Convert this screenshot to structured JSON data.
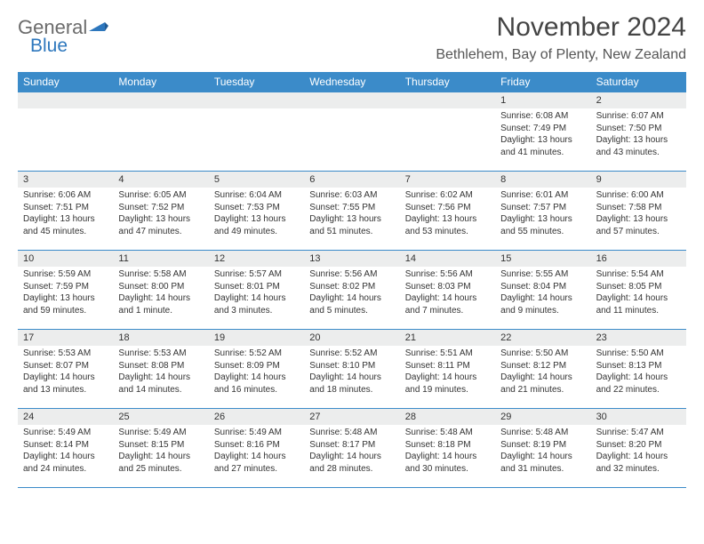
{
  "logo": {
    "word1": "General",
    "word2": "Blue"
  },
  "title": "November 2024",
  "location": "Bethlehem, Bay of Plenty, New Zealand",
  "colors": {
    "header_bg": "#3b8bc9",
    "header_text": "#ffffff",
    "date_bar_bg": "#eceded",
    "border": "#3b8bc9",
    "logo_gray": "#6b6b6b",
    "logo_blue": "#2d77bd"
  },
  "day_names": [
    "Sunday",
    "Monday",
    "Tuesday",
    "Wednesday",
    "Thursday",
    "Friday",
    "Saturday"
  ],
  "weeks": [
    [
      {
        "date": "",
        "sunrise": "",
        "sunset": "",
        "daylight": ""
      },
      {
        "date": "",
        "sunrise": "",
        "sunset": "",
        "daylight": ""
      },
      {
        "date": "",
        "sunrise": "",
        "sunset": "",
        "daylight": ""
      },
      {
        "date": "",
        "sunrise": "",
        "sunset": "",
        "daylight": ""
      },
      {
        "date": "",
        "sunrise": "",
        "sunset": "",
        "daylight": ""
      },
      {
        "date": "1",
        "sunrise": "Sunrise: 6:08 AM",
        "sunset": "Sunset: 7:49 PM",
        "daylight": "Daylight: 13 hours and 41 minutes."
      },
      {
        "date": "2",
        "sunrise": "Sunrise: 6:07 AM",
        "sunset": "Sunset: 7:50 PM",
        "daylight": "Daylight: 13 hours and 43 minutes."
      }
    ],
    [
      {
        "date": "3",
        "sunrise": "Sunrise: 6:06 AM",
        "sunset": "Sunset: 7:51 PM",
        "daylight": "Daylight: 13 hours and 45 minutes."
      },
      {
        "date": "4",
        "sunrise": "Sunrise: 6:05 AM",
        "sunset": "Sunset: 7:52 PM",
        "daylight": "Daylight: 13 hours and 47 minutes."
      },
      {
        "date": "5",
        "sunrise": "Sunrise: 6:04 AM",
        "sunset": "Sunset: 7:53 PM",
        "daylight": "Daylight: 13 hours and 49 minutes."
      },
      {
        "date": "6",
        "sunrise": "Sunrise: 6:03 AM",
        "sunset": "Sunset: 7:55 PM",
        "daylight": "Daylight: 13 hours and 51 minutes."
      },
      {
        "date": "7",
        "sunrise": "Sunrise: 6:02 AM",
        "sunset": "Sunset: 7:56 PM",
        "daylight": "Daylight: 13 hours and 53 minutes."
      },
      {
        "date": "8",
        "sunrise": "Sunrise: 6:01 AM",
        "sunset": "Sunset: 7:57 PM",
        "daylight": "Daylight: 13 hours and 55 minutes."
      },
      {
        "date": "9",
        "sunrise": "Sunrise: 6:00 AM",
        "sunset": "Sunset: 7:58 PM",
        "daylight": "Daylight: 13 hours and 57 minutes."
      }
    ],
    [
      {
        "date": "10",
        "sunrise": "Sunrise: 5:59 AM",
        "sunset": "Sunset: 7:59 PM",
        "daylight": "Daylight: 13 hours and 59 minutes."
      },
      {
        "date": "11",
        "sunrise": "Sunrise: 5:58 AM",
        "sunset": "Sunset: 8:00 PM",
        "daylight": "Daylight: 14 hours and 1 minute."
      },
      {
        "date": "12",
        "sunrise": "Sunrise: 5:57 AM",
        "sunset": "Sunset: 8:01 PM",
        "daylight": "Daylight: 14 hours and 3 minutes."
      },
      {
        "date": "13",
        "sunrise": "Sunrise: 5:56 AM",
        "sunset": "Sunset: 8:02 PM",
        "daylight": "Daylight: 14 hours and 5 minutes."
      },
      {
        "date": "14",
        "sunrise": "Sunrise: 5:56 AM",
        "sunset": "Sunset: 8:03 PM",
        "daylight": "Daylight: 14 hours and 7 minutes."
      },
      {
        "date": "15",
        "sunrise": "Sunrise: 5:55 AM",
        "sunset": "Sunset: 8:04 PM",
        "daylight": "Daylight: 14 hours and 9 minutes."
      },
      {
        "date": "16",
        "sunrise": "Sunrise: 5:54 AM",
        "sunset": "Sunset: 8:05 PM",
        "daylight": "Daylight: 14 hours and 11 minutes."
      }
    ],
    [
      {
        "date": "17",
        "sunrise": "Sunrise: 5:53 AM",
        "sunset": "Sunset: 8:07 PM",
        "daylight": "Daylight: 14 hours and 13 minutes."
      },
      {
        "date": "18",
        "sunrise": "Sunrise: 5:53 AM",
        "sunset": "Sunset: 8:08 PM",
        "daylight": "Daylight: 14 hours and 14 minutes."
      },
      {
        "date": "19",
        "sunrise": "Sunrise: 5:52 AM",
        "sunset": "Sunset: 8:09 PM",
        "daylight": "Daylight: 14 hours and 16 minutes."
      },
      {
        "date": "20",
        "sunrise": "Sunrise: 5:52 AM",
        "sunset": "Sunset: 8:10 PM",
        "daylight": "Daylight: 14 hours and 18 minutes."
      },
      {
        "date": "21",
        "sunrise": "Sunrise: 5:51 AM",
        "sunset": "Sunset: 8:11 PM",
        "daylight": "Daylight: 14 hours and 19 minutes."
      },
      {
        "date": "22",
        "sunrise": "Sunrise: 5:50 AM",
        "sunset": "Sunset: 8:12 PM",
        "daylight": "Daylight: 14 hours and 21 minutes."
      },
      {
        "date": "23",
        "sunrise": "Sunrise: 5:50 AM",
        "sunset": "Sunset: 8:13 PM",
        "daylight": "Daylight: 14 hours and 22 minutes."
      }
    ],
    [
      {
        "date": "24",
        "sunrise": "Sunrise: 5:49 AM",
        "sunset": "Sunset: 8:14 PM",
        "daylight": "Daylight: 14 hours and 24 minutes."
      },
      {
        "date": "25",
        "sunrise": "Sunrise: 5:49 AM",
        "sunset": "Sunset: 8:15 PM",
        "daylight": "Daylight: 14 hours and 25 minutes."
      },
      {
        "date": "26",
        "sunrise": "Sunrise: 5:49 AM",
        "sunset": "Sunset: 8:16 PM",
        "daylight": "Daylight: 14 hours and 27 minutes."
      },
      {
        "date": "27",
        "sunrise": "Sunrise: 5:48 AM",
        "sunset": "Sunset: 8:17 PM",
        "daylight": "Daylight: 14 hours and 28 minutes."
      },
      {
        "date": "28",
        "sunrise": "Sunrise: 5:48 AM",
        "sunset": "Sunset: 8:18 PM",
        "daylight": "Daylight: 14 hours and 30 minutes."
      },
      {
        "date": "29",
        "sunrise": "Sunrise: 5:48 AM",
        "sunset": "Sunset: 8:19 PM",
        "daylight": "Daylight: 14 hours and 31 minutes."
      },
      {
        "date": "30",
        "sunrise": "Sunrise: 5:47 AM",
        "sunset": "Sunset: 8:20 PM",
        "daylight": "Daylight: 14 hours and 32 minutes."
      }
    ]
  ]
}
